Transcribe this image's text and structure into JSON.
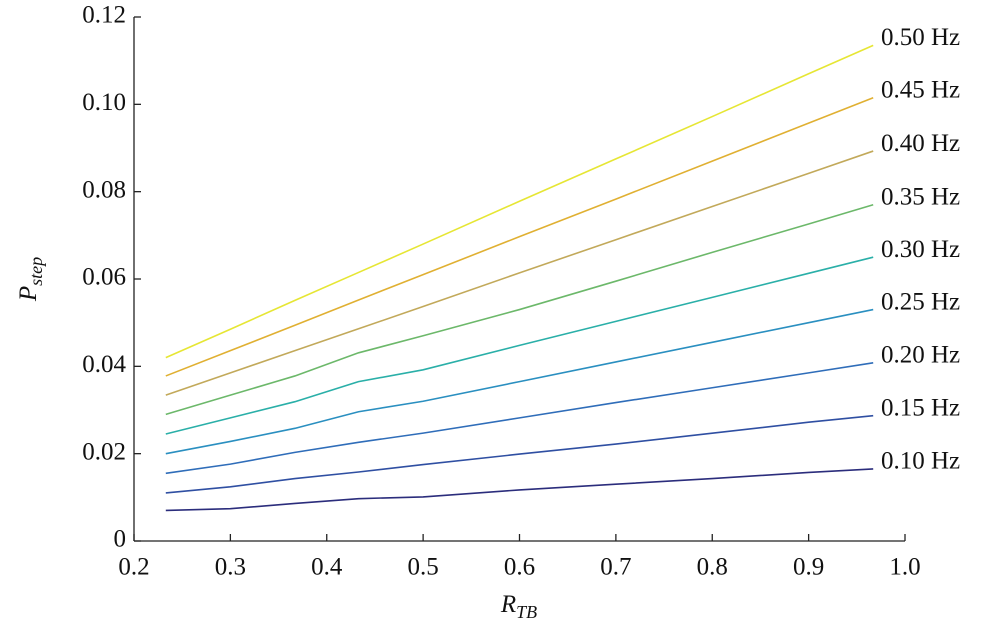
{
  "chart_data": {
    "type": "line",
    "xlabel": "R",
    "xlabel_sub": "TB",
    "ylabel": "P",
    "ylabel_sub": "step",
    "x": [
      0.233,
      0.3,
      0.367,
      0.433,
      0.5,
      0.6,
      0.7,
      0.8,
      0.9,
      0.967
    ],
    "xlim": [
      0.2,
      1.0
    ],
    "xticks": [
      0.2,
      0.3,
      0.4,
      0.5,
      0.6,
      0.7,
      0.8,
      0.9,
      {
        "value": 1.0,
        "label": "1.0"
      }
    ],
    "ylim": [
      0,
      0.12
    ],
    "yticks": [
      0,
      0.02,
      0.04,
      0.06,
      0.08,
      {
        "value": 0.1,
        "label": "0.10"
      },
      0.12
    ],
    "series": [
      {
        "name": "0.10 Hz",
        "color": "#2b2d7c",
        "values": [
          0.007,
          0.0074,
          0.0086,
          0.0097,
          0.0101,
          0.0117,
          0.013,
          0.0143,
          0.0157,
          0.0165
        ]
      },
      {
        "name": "0.15 Hz",
        "color": "#2f4fa2",
        "values": [
          0.011,
          0.0124,
          0.0143,
          0.0158,
          0.0175,
          0.0199,
          0.0222,
          0.0247,
          0.0272,
          0.0287
        ]
      },
      {
        "name": "0.20 Hz",
        "color": "#2f6db9",
        "values": [
          0.0155,
          0.0176,
          0.0203,
          0.0226,
          0.0247,
          0.0282,
          0.0317,
          0.0351,
          0.0385,
          0.0408
        ]
      },
      {
        "name": "0.25 Hz",
        "color": "#2a8fc0",
        "values": [
          0.02,
          0.0228,
          0.0258,
          0.0296,
          0.032,
          0.0365,
          0.041,
          0.0455,
          0.05,
          0.053
        ]
      },
      {
        "name": "0.30 Hz",
        "color": "#2aafa8",
        "values": [
          0.0245,
          0.0282,
          0.0319,
          0.0365,
          0.0392,
          0.0448,
          0.0503,
          0.0558,
          0.0613,
          0.065
        ]
      },
      {
        "name": "0.35 Hz",
        "color": "#6cb86a",
        "values": [
          0.029,
          0.0334,
          0.0378,
          0.0431,
          0.047,
          0.053,
          0.0595,
          0.0661,
          0.0726,
          0.077
        ]
      },
      {
        "name": "0.40 Hz",
        "color": "#c2a95a",
        "values": [
          0.0334,
          0.0385,
          0.0436,
          0.0486,
          0.0537,
          0.0614,
          0.069,
          0.0766,
          0.0842,
          0.0893
        ]
      },
      {
        "name": "0.45 Hz",
        "color": "#e0b032",
        "values": [
          0.0378,
          0.0436,
          0.0494,
          0.0552,
          0.061,
          0.0697,
          0.0783,
          0.087,
          0.0957,
          0.1015
        ]
      },
      {
        "name": "0.50 Hz",
        "color": "#e6e634",
        "values": [
          0.042,
          0.0485,
          0.0551,
          0.0615,
          0.068,
          0.0778,
          0.0875,
          0.0972,
          0.107,
          0.1135
        ]
      }
    ]
  }
}
